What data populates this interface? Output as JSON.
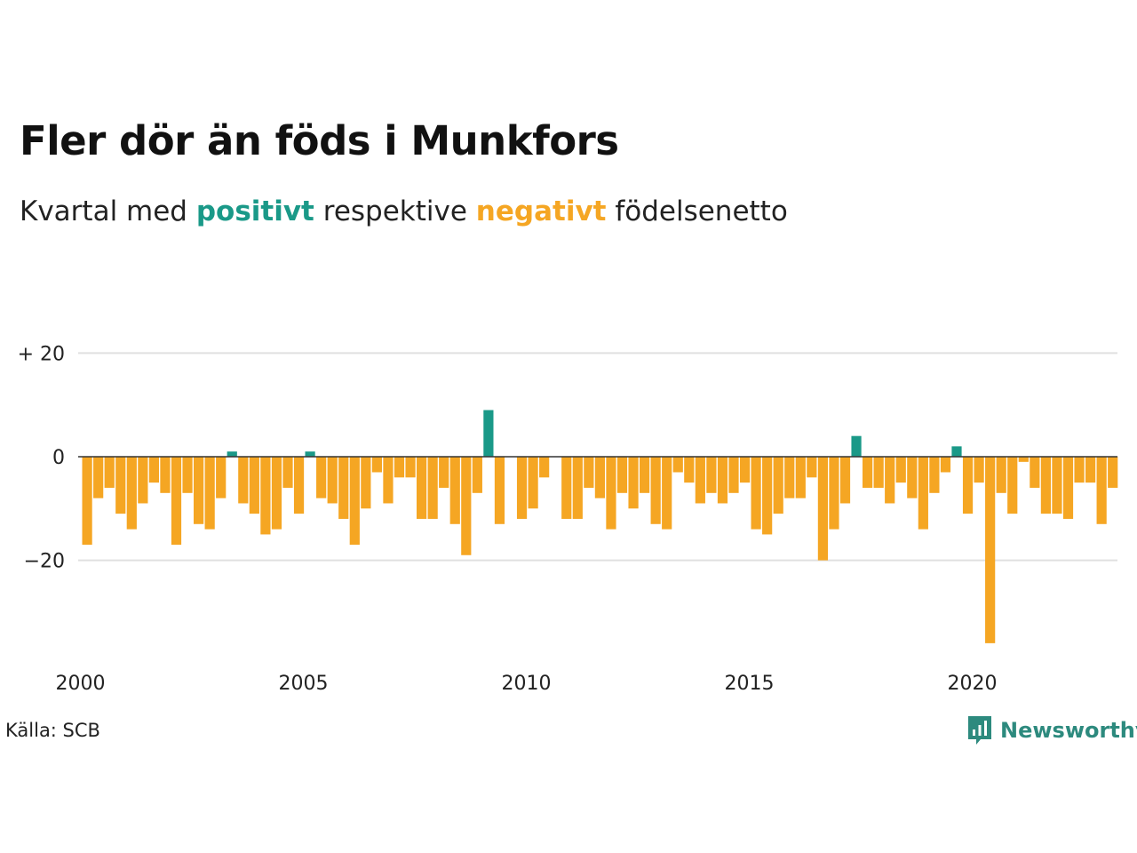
{
  "title": "Fler dör än föds i Munkfors",
  "subtitle": {
    "prefix": "Kvartal med",
    "positive": "positivt",
    "middle": "respektive",
    "negative": "negativt",
    "suffix": "födelsenetto"
  },
  "source": "Källa: SCB",
  "brand": "Newsworthy",
  "colors": {
    "positive": "#1a9988",
    "negative": "#f5a623",
    "grid": "#e0e0e0",
    "zero": "#333333"
  },
  "chart_data": {
    "type": "bar",
    "x_start": "2000 Q1",
    "x_ticks": [
      2000,
      2005,
      2010,
      2015,
      2020
    ],
    "y_ticks": [
      {
        "value": 20,
        "label": "+ 20"
      },
      {
        "value": 0,
        "label": "0"
      },
      {
        "value": -20,
        "label": "−20"
      }
    ],
    "ylim": [
      -38,
      20
    ],
    "grid": true,
    "values": [
      -17,
      -8,
      -6,
      -11,
      -14,
      -9,
      -5,
      -7,
      -17,
      -7,
      -13,
      -14,
      -8,
      1,
      -9,
      -11,
      -15,
      -14,
      -6,
      -11,
      1,
      -8,
      -9,
      -12,
      -17,
      -10,
      -3,
      -9,
      -4,
      -4,
      -12,
      -12,
      -6,
      -13,
      -19,
      -7,
      9,
      -13,
      0,
      -12,
      -10,
      -4,
      0,
      -12,
      -12,
      -6,
      -8,
      -14,
      -7,
      -10,
      -7,
      -13,
      -14,
      -3,
      -5,
      -9,
      -7,
      -9,
      -7,
      -5,
      -14,
      -15,
      -11,
      -8,
      -8,
      -4,
      -20,
      -14,
      -9,
      4,
      -6,
      -6,
      -9,
      -5,
      -8,
      -14,
      -7,
      -3,
      2,
      -11,
      -5,
      -36,
      -7,
      -11,
      -1,
      -6,
      -11,
      -11,
      -12,
      -5,
      -5,
      -13,
      -6
    ]
  }
}
